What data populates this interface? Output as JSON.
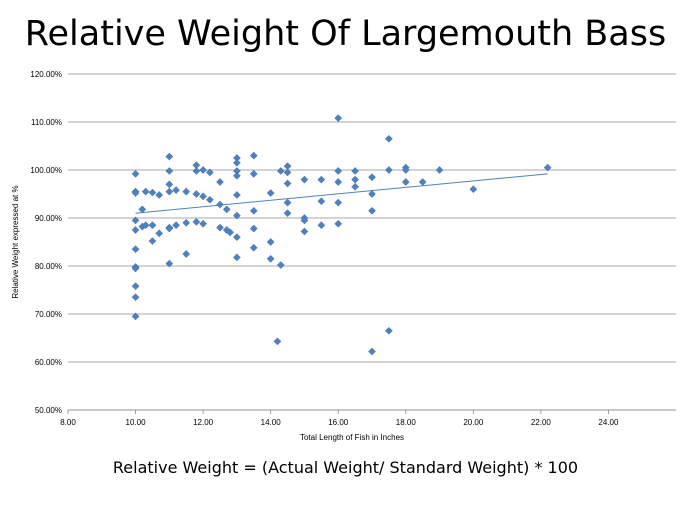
{
  "chart_data": {
    "type": "scatter",
    "title": "Relative Weight Of Largemouth Bass",
    "subtitle": "Relative Weight = (Actual Weight/ Standard Weight) * 100",
    "xlabel": "Total Length of Fish in Inches",
    "ylabel": "Relative Weight expressed at %",
    "xlim": [
      8,
      26
    ],
    "ylim": [
      50,
      120
    ],
    "x_ticks": [
      "8.00",
      "10.00",
      "12.00",
      "14.00",
      "16.00",
      "18.00",
      "20.00",
      "22.00",
      "24.00"
    ],
    "y_ticks": [
      "50.00%",
      "60.00%",
      "70.00%",
      "80.00%",
      "90.00%",
      "100.00%",
      "110.00%",
      "120.00%"
    ],
    "x_tick_values": [
      8,
      10,
      12,
      14,
      16,
      18,
      20,
      22,
      24
    ],
    "y_tick_values": [
      50,
      60,
      70,
      80,
      90,
      100,
      110,
      120
    ],
    "grid": "horizontal",
    "marker_color": "#4f81bd",
    "trendline": {
      "x": [
        10,
        22.2
      ],
      "y": [
        91.0,
        99.2
      ],
      "color": "#4f81bd"
    },
    "x": [
      10.0,
      10.0,
      10.0,
      10.0,
      10.0,
      10.0,
      10.0,
      10.0,
      10.0,
      10.0,
      10.0,
      10.2,
      10.2,
      10.3,
      10.3,
      10.5,
      10.5,
      10.5,
      10.7,
      10.7,
      11.0,
      11.0,
      11.0,
      11.0,
      11.0,
      11.0,
      11.0,
      11.2,
      11.2,
      11.5,
      11.5,
      11.5,
      11.8,
      11.8,
      11.8,
      11.8,
      12.0,
      12.0,
      12.0,
      12.2,
      12.2,
      12.5,
      12.5,
      12.5,
      12.7,
      12.7,
      12.8,
      13.0,
      13.0,
      13.0,
      13.0,
      13.0,
      13.0,
      13.0,
      13.0,
      13.5,
      13.5,
      13.5,
      13.5,
      13.5,
      14.0,
      14.0,
      14.0,
      14.2,
      14.3,
      14.3,
      14.5,
      14.5,
      14.5,
      14.5,
      14.5,
      15.0,
      15.0,
      15.0,
      15.0,
      15.5,
      15.5,
      15.5,
      16.0,
      16.0,
      16.0,
      16.0,
      16.0,
      16.5,
      16.5,
      16.5,
      17.0,
      17.0,
      17.0,
      17.0,
      17.5,
      17.5,
      17.5,
      18.0,
      18.0,
      18.0,
      18.5,
      19.0,
      20.0,
      22.2
    ],
    "y": [
      99.2,
      95.5,
      89.5,
      87.5,
      83.5,
      79.8,
      79.5,
      75.8,
      73.5,
      69.5,
      95.2,
      88.2,
      91.8,
      95.5,
      88.5,
      95.3,
      88.5,
      85.2,
      94.8,
      86.8,
      102.8,
      99.8,
      97.0,
      95.5,
      88.0,
      87.8,
      80.5,
      95.8,
      88.5,
      95.5,
      89.0,
      82.5,
      101.0,
      99.8,
      95.0,
      89.2,
      100.0,
      94.5,
      88.8,
      99.5,
      93.8,
      97.5,
      92.8,
      88.0,
      91.8,
      87.5,
      87.0,
      102.5,
      101.5,
      99.8,
      98.8,
      94.8,
      90.5,
      86.0,
      81.8,
      103.0,
      99.2,
      91.5,
      87.8,
      83.8,
      95.2,
      85.0,
      81.5,
      64.3,
      99.8,
      80.2,
      100.8,
      99.5,
      97.2,
      93.2,
      91.0,
      98.0,
      90.0,
      89.5,
      87.2,
      98.0,
      93.5,
      88.5,
      110.8,
      99.8,
      97.5,
      93.2,
      88.8,
      99.8,
      98.0,
      96.5,
      98.5,
      95.0,
      91.5,
      62.2,
      106.5,
      100.0,
      66.5,
      100.5,
      100.0,
      97.5,
      97.5,
      100.0,
      96.0,
      100.5
    ]
  }
}
